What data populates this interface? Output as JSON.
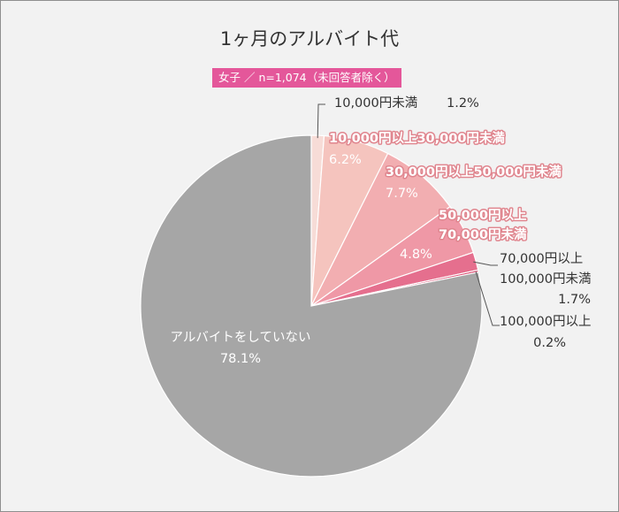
{
  "chart_data": {
    "type": "pie",
    "title": "1ヶ月のアルバイト代",
    "subtitle": "女子 ／ n=1,074（未回答者除く）",
    "start_angle_deg": 0,
    "direction": "clockwise",
    "slices": [
      {
        "label_lines": [
          "10,000円未満"
        ],
        "value_label": "1.2%",
        "value": 1.2,
        "color": "#f7dcd7"
      },
      {
        "label_lines": [
          "10,000円以上30,000円未満"
        ],
        "value_label": "6.2%",
        "value": 6.2,
        "color": "#f5c4be"
      },
      {
        "label_lines": [
          "30,000円以上50,000円未満"
        ],
        "value_label": "7.7%",
        "value": 7.7,
        "color": "#f2aeb1"
      },
      {
        "label_lines": [
          "50,000円以上",
          "70,000円未満"
        ],
        "value_label": "4.8%",
        "value": 4.8,
        "color": "#ef98a6"
      },
      {
        "label_lines": [
          "70,000円以上",
          "100,000円未満"
        ],
        "value_label": "1.7%",
        "value": 1.7,
        "color": "#e56f8e"
      },
      {
        "label_lines": [
          "100,000円以上"
        ],
        "value_label": "0.2%",
        "value": 0.2,
        "color": "#d9466d"
      },
      {
        "label_lines": [
          "アルバイトをしていない"
        ],
        "value_label": "78.1%",
        "value": 78.1,
        "color": "#a6a6a6"
      }
    ]
  }
}
